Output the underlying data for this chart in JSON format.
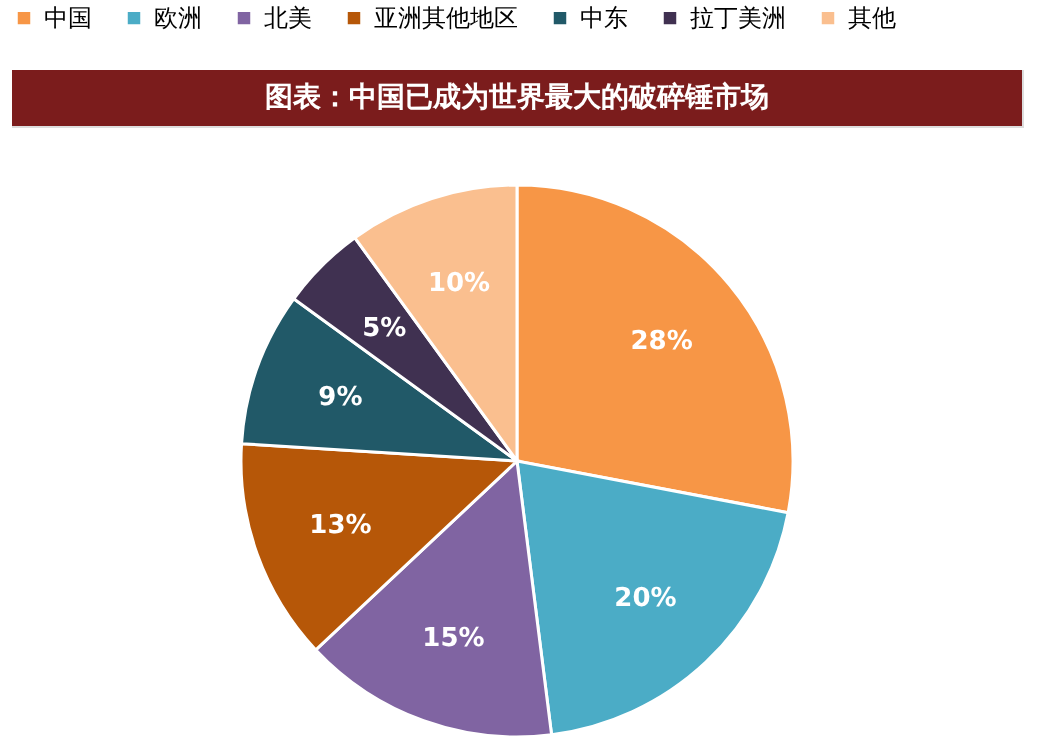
{
  "chart_data": {
    "type": "pie",
    "title": "图表：中国已成为世界最大的破碎锤市场",
    "categories": [
      "中国",
      "欧洲",
      "北美",
      "亚洲其他地区",
      "中东",
      "拉丁美洲",
      "其他"
    ],
    "values": [
      28,
      20,
      15,
      13,
      9,
      5,
      10
    ],
    "value_labels": [
      "28%",
      "20%",
      "15%",
      "13%",
      "9%",
      "5%",
      "10%"
    ],
    "colors": [
      "#f79646",
      "#4bacc6",
      "#8064a2",
      "#b65708",
      "#215968",
      "#403151",
      "#fabf8f"
    ],
    "legend": "top"
  }
}
